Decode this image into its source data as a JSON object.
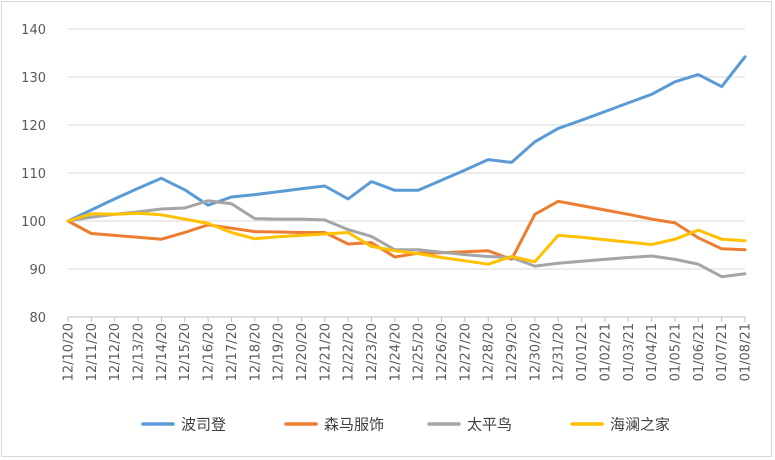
{
  "chart_data": {
    "type": "line",
    "categories": [
      "12/10/20",
      "12/11/20",
      "12/12/20",
      "12/13/20",
      "12/14/20",
      "12/15/20",
      "12/16/20",
      "12/17/20",
      "12/18/20",
      "12/19/20",
      "12/20/20",
      "12/21/20",
      "12/22/20",
      "12/23/20",
      "12/24/20",
      "12/25/20",
      "12/26/20",
      "12/27/20",
      "12/28/20",
      "12/29/20",
      "12/30/20",
      "12/31/20",
      "01/01/21",
      "01/02/21",
      "01/03/21",
      "01/04/21",
      "01/05/21",
      "01/06/21",
      "01/07/21",
      "01/08/21"
    ],
    "series": [
      {
        "name": "波司登",
        "color": "#5B9BD5",
        "values": [
          100,
          102.3,
          104.6,
          106.8,
          108.9,
          106.5,
          103.3,
          105.0,
          105.5,
          106.1,
          106.7,
          107.3,
          104.6,
          108.2,
          106.4,
          106.4,
          108.5,
          110.6,
          112.8,
          112.2,
          116.5,
          119.3,
          121.0,
          122.8,
          124.6,
          126.4,
          129.0,
          130.5,
          128.0,
          134.2
        ]
      },
      {
        "name": "森马服饰",
        "color": "#ED7D31",
        "values": [
          100,
          97.4,
          97.0,
          96.6,
          96.2,
          97.6,
          99.2,
          98.5,
          97.8,
          97.7,
          97.6,
          97.6,
          95.2,
          95.5,
          92.5,
          93.3,
          93.4,
          93.6,
          93.8,
          92.0,
          101.4,
          104.1,
          103.2,
          102.3,
          101.4,
          100.4,
          99.6,
          96.5,
          94.2,
          94.0
        ]
      },
      {
        "name": "太平鸟",
        "color": "#A5A5A5",
        "values": [
          100,
          100.8,
          101.4,
          101.9,
          102.5,
          102.7,
          104.2,
          103.6,
          100.5,
          100.4,
          100.4,
          100.2,
          98.2,
          96.8,
          94.0,
          94.0,
          93.5,
          93.0,
          92.6,
          92.4,
          90.6,
          91.2,
          91.6,
          92.0,
          92.4,
          92.7,
          92.0,
          91.0,
          88.4,
          89.0
        ]
      },
      {
        "name": "海澜之家",
        "color": "#FFC000",
        "values": [
          100,
          101.5,
          101.4,
          101.6,
          101.3,
          100.4,
          99.5,
          97.6,
          96.3,
          96.7,
          97.0,
          97.3,
          97.6,
          94.7,
          93.8,
          93.2,
          92.4,
          91.7,
          91.0,
          92.6,
          91.5,
          97.0,
          96.6,
          96.1,
          95.6,
          95.1,
          96.2,
          98.1,
          96.2,
          95.9
        ]
      }
    ],
    "ylim": [
      80,
      140
    ],
    "yticks": [
      80,
      90,
      100,
      110,
      120,
      130,
      140
    ],
    "grid": true,
    "legend_position": "bottom"
  }
}
